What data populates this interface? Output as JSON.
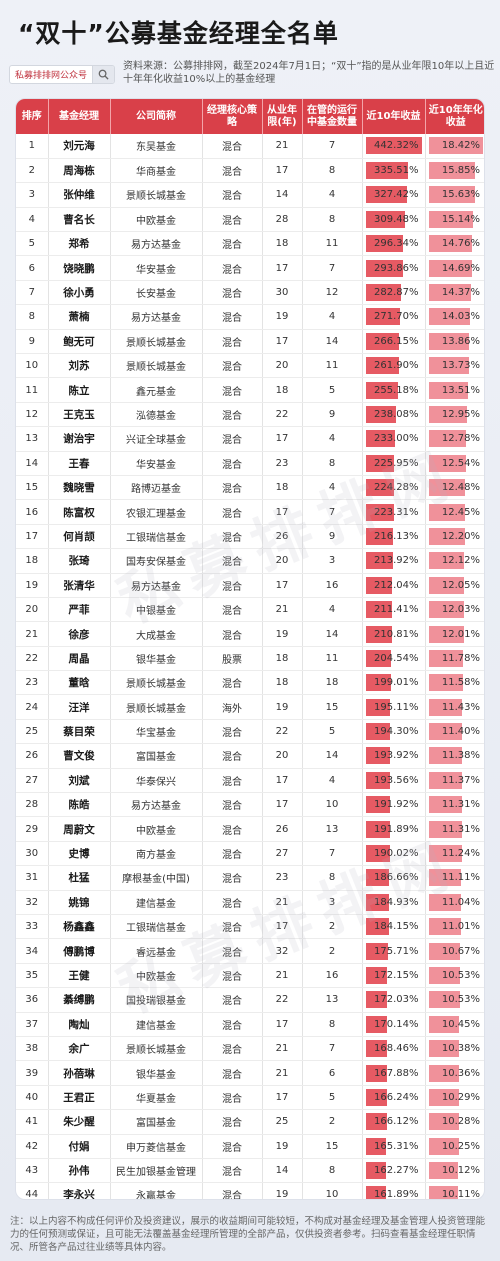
{
  "title": "“双十”公募基金经理全名单",
  "search": {
    "text": "私募排排网公众号"
  },
  "source": "资料来源：公募排排网，截至2024年7月1日；“双十”指的是从业年限10年以上且近十年年化收益10%以上的基金经理",
  "watermark": "私募排排网",
  "headers": [
    "排序",
    "基金经理",
    "公司简称",
    "经理核心策略",
    "从业年限(年)",
    "在管的运行中基金数量",
    "近10年收益",
    "近10年年化收益"
  ],
  "rows": [
    [
      "1",
      "刘元海",
      "东吴基金",
      "混合",
      "21",
      "7",
      "442.32%",
      "18.42%"
    ],
    [
      "2",
      "周海栋",
      "华商基金",
      "混合",
      "17",
      "8",
      "335.51%",
      "15.85%"
    ],
    [
      "3",
      "张仲维",
      "景顺长城基金",
      "混合",
      "14",
      "4",
      "327.42%",
      "15.63%"
    ],
    [
      "4",
      "曹名长",
      "中欧基金",
      "混合",
      "28",
      "8",
      "309.48%",
      "15.14%"
    ],
    [
      "5",
      "郑希",
      "易方达基金",
      "混合",
      "18",
      "11",
      "296.34%",
      "14.76%"
    ],
    [
      "6",
      "饶晓鹏",
      "华安基金",
      "混合",
      "17",
      "7",
      "293.86%",
      "14.69%"
    ],
    [
      "7",
      "徐小勇",
      "长安基金",
      "混合",
      "30",
      "12",
      "282.87%",
      "14.37%"
    ],
    [
      "8",
      "萧楠",
      "易方达基金",
      "混合",
      "19",
      "4",
      "271.70%",
      "14.03%"
    ],
    [
      "9",
      "鲍无可",
      "景顺长城基金",
      "混合",
      "17",
      "14",
      "266.15%",
      "13.86%"
    ],
    [
      "10",
      "刘苏",
      "景顺长城基金",
      "混合",
      "20",
      "11",
      "261.90%",
      "13.73%"
    ],
    [
      "11",
      "陈立",
      "鑫元基金",
      "混合",
      "18",
      "5",
      "255.18%",
      "13.51%"
    ],
    [
      "12",
      "王克玉",
      "泓德基金",
      "混合",
      "22",
      "9",
      "238.08%",
      "12.95%"
    ],
    [
      "13",
      "谢治宇",
      "兴证全球基金",
      "混合",
      "17",
      "4",
      "233.00%",
      "12.78%"
    ],
    [
      "14",
      "王春",
      "华安基金",
      "混合",
      "23",
      "8",
      "225.95%",
      "12.54%"
    ],
    [
      "15",
      "魏晓雪",
      "路博迈基金",
      "混合",
      "18",
      "4",
      "224.28%",
      "12.48%"
    ],
    [
      "16",
      "陈富权",
      "农银汇理基金",
      "混合",
      "17",
      "7",
      "223.31%",
      "12.45%"
    ],
    [
      "17",
      "何肖颉",
      "工银瑞信基金",
      "混合",
      "26",
      "9",
      "216.13%",
      "12.20%"
    ],
    [
      "18",
      "张琦",
      "国寿安保基金",
      "混合",
      "20",
      "3",
      "213.92%",
      "12.12%"
    ],
    [
      "19",
      "张清华",
      "易方达基金",
      "混合",
      "17",
      "16",
      "212.04%",
      "12.05%"
    ],
    [
      "20",
      "严菲",
      "中银基金",
      "混合",
      "21",
      "4",
      "211.41%",
      "12.03%"
    ],
    [
      "21",
      "徐彦",
      "大成基金",
      "混合",
      "19",
      "14",
      "210.81%",
      "12.01%"
    ],
    [
      "22",
      "周晶",
      "银华基金",
      "股票",
      "18",
      "11",
      "204.54%",
      "11.78%"
    ],
    [
      "23",
      "董晗",
      "景顺长城基金",
      "混合",
      "18",
      "18",
      "199.01%",
      "11.58%"
    ],
    [
      "24",
      "汪洋",
      "景顺长城基金",
      "海外",
      "19",
      "15",
      "195.11%",
      "11.43%"
    ],
    [
      "25",
      "蔡目荣",
      "华宝基金",
      "混合",
      "22",
      "5",
      "194.30%",
      "11.40%"
    ],
    [
      "26",
      "曹文俊",
      "富国基金",
      "混合",
      "20",
      "14",
      "193.92%",
      "11.38%"
    ],
    [
      "27",
      "刘斌",
      "华泰保兴",
      "混合",
      "17",
      "4",
      "193.56%",
      "11.37%"
    ],
    [
      "28",
      "陈皓",
      "易方达基金",
      "混合",
      "17",
      "10",
      "191.92%",
      "11.31%"
    ],
    [
      "29",
      "周蔚文",
      "中欧基金",
      "混合",
      "26",
      "13",
      "191.89%",
      "11.31%"
    ],
    [
      "30",
      "史博",
      "南方基金",
      "混合",
      "27",
      "7",
      "190.02%",
      "11.24%"
    ],
    [
      "31",
      "杜猛",
      "摩根基金(中国)",
      "混合",
      "23",
      "8",
      "186.66%",
      "11.11%"
    ],
    [
      "32",
      "姚锦",
      "建信基金",
      "混合",
      "21",
      "3",
      "184.93%",
      "11.04%"
    ],
    [
      "33",
      "杨鑫鑫",
      "工银瑞信基金",
      "混合",
      "17",
      "2",
      "184.15%",
      "11.01%"
    ],
    [
      "34",
      "傅鹏博",
      "睿远基金",
      "混合",
      "32",
      "2",
      "175.71%",
      "10.67%"
    ],
    [
      "35",
      "王健",
      "中欧基金",
      "混合",
      "21",
      "16",
      "172.15%",
      "10.53%"
    ],
    [
      "36",
      "綦缚鹏",
      "国投瑞银基金",
      "混合",
      "22",
      "13",
      "172.03%",
      "10.53%"
    ],
    [
      "37",
      "陶灿",
      "建信基金",
      "混合",
      "17",
      "8",
      "170.14%",
      "10.45%"
    ],
    [
      "38",
      "余广",
      "景顺长城基金",
      "混合",
      "21",
      "7",
      "168.46%",
      "10.38%"
    ],
    [
      "39",
      "孙蓓琳",
      "银华基金",
      "混合",
      "21",
      "6",
      "167.88%",
      "10.36%"
    ],
    [
      "40",
      "王君正",
      "华夏基金",
      "混合",
      "17",
      "5",
      "166.24%",
      "10.29%"
    ],
    [
      "41",
      "朱少醒",
      "富国基金",
      "混合",
      "25",
      "2",
      "166.12%",
      "10.28%"
    ],
    [
      "42",
      "付娟",
      "申万菱信基金",
      "混合",
      "19",
      "15",
      "165.31%",
      "10.25%"
    ],
    [
      "43",
      "孙伟",
      "民生加银基金管理",
      "混合",
      "14",
      "8",
      "162.27%",
      "10.12%"
    ],
    [
      "44",
      "李永兴",
      "永赢基金",
      "混合",
      "19",
      "10",
      "161.89%",
      "10.11%"
    ]
  ],
  "footer": "注：以上内容不构成任何评价及投资建议，展示的收益期间可能较短，不构成对基金经理及基金管理人投资管理能力的任何预测或保证，且可能无法覆盖基金经理所管理的全部产品，仅供投资者参考。扫码查看基金经理任职情况、所管各产品过往业绩等具体内容。"
}
